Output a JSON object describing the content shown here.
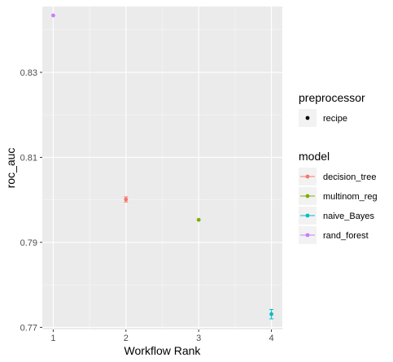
{
  "chart_data": {
    "type": "scatter",
    "xlabel": "Workflow Rank",
    "ylabel": "roc_auc",
    "x_ticks": [
      "1",
      "2",
      "3",
      "4"
    ],
    "y_ticks": [
      "0.77",
      "0.79",
      "0.81",
      "0.83"
    ],
    "xlim": [
      0.85,
      4.15
    ],
    "ylim": [
      0.7695,
      0.8455
    ],
    "grid": true,
    "legend_position": "right",
    "series": [
      {
        "name": "rand_forest",
        "color": "#C77CFF",
        "x": 1,
        "y": 0.8434,
        "err": 0.0
      },
      {
        "name": "decision_tree",
        "color": "#F8766D",
        "x": 2,
        "y": 0.8001,
        "err": 0.0006
      },
      {
        "name": "multinom_reg",
        "color": "#7CAE00",
        "x": 3,
        "y": 0.7953,
        "err": 0.0
      },
      {
        "name": "naive_Bayes",
        "color": "#00BFC4",
        "x": 4,
        "y": 0.7731,
        "err": 0.0011
      }
    ],
    "legend": {
      "preprocessor_title": "preprocessor",
      "preprocessor_items": [
        "recipe"
      ],
      "model_title": "model",
      "model_items": [
        {
          "label": "decision_tree",
          "color": "#F8766D"
        },
        {
          "label": "multinom_reg",
          "color": "#7CAE00"
        },
        {
          "label": "naive_Bayes",
          "color": "#00BFC4"
        },
        {
          "label": "rand_forest",
          "color": "#C77CFF"
        }
      ]
    }
  },
  "colors": {
    "panel_bg": "#EBEBEB",
    "grid_major": "#FFFFFF",
    "legend_key_bg": "#F2F2F2"
  }
}
